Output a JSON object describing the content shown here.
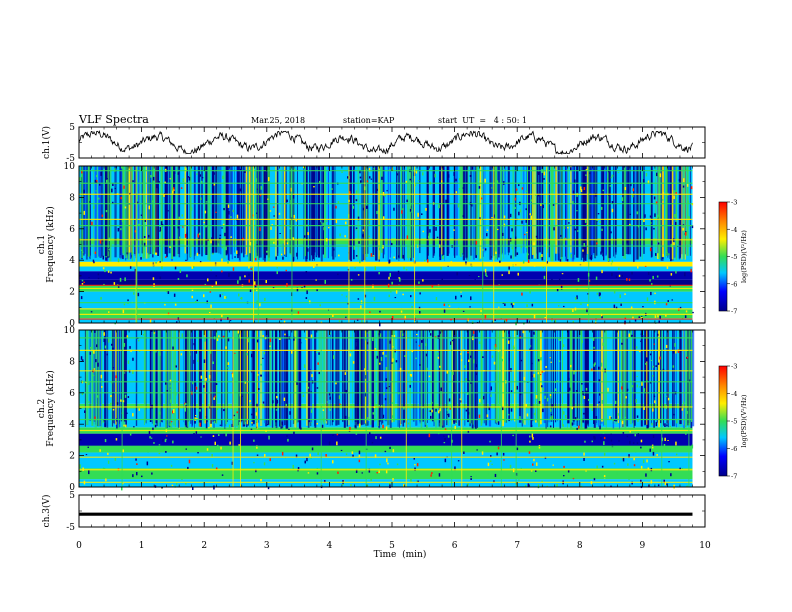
{
  "header": {
    "title": "VLF Spectra",
    "date": "Mar.25, 2018",
    "station": "station=KAP",
    "start": "start  UT  =   4 : 50: 1"
  },
  "chart_data": [
    {
      "type": "line",
      "name": "ch1-waveform",
      "ylabel": "ch.1(V)",
      "ylim": [
        -5,
        5
      ],
      "yticks": [
        "5",
        "-5"
      ],
      "xlim": [
        0,
        10
      ],
      "data_end_min": 9.8,
      "description_values": "noisy waveform oscillating roughly between -2 and 2 V"
    },
    {
      "type": "heatmap",
      "name": "ch1-spectrogram",
      "ylabel": "ch.1\nFrequency (kHz)",
      "ylim": [
        0,
        10
      ],
      "yticks": [
        "0",
        "2",
        "4",
        "6",
        "8",
        "10"
      ],
      "xlim": [
        0,
        10
      ],
      "data_end_min": 9.8,
      "colorbar": {
        "label": "log(PSD)(V²/Hz)",
        "range": [
          -7,
          -3
        ],
        "ticks": [
          "-3",
          "-4",
          "-5",
          "-6",
          "-7"
        ]
      }
    },
    {
      "type": "heatmap",
      "name": "ch2-spectrogram",
      "ylabel": "ch.2\nFrequency (kHz)",
      "ylim": [
        0,
        10
      ],
      "yticks": [
        "0",
        "2",
        "4",
        "6",
        "8",
        "10"
      ],
      "xlim": [
        0,
        10
      ],
      "data_end_min": 9.8,
      "colorbar": {
        "label": "log(PSD)(V²/Hz)",
        "range": [
          -7,
          -3
        ],
        "ticks": [
          "-3",
          "-4",
          "-5",
          "-6",
          "-7"
        ]
      }
    },
    {
      "type": "line",
      "name": "ch3-waveform",
      "ylabel": "ch.3(V)",
      "ylim": [
        -5,
        5
      ],
      "yticks": [
        "5",
        "-5"
      ],
      "xlim": [
        0,
        10
      ],
      "data_end_min": 9.8,
      "constant_value": -1
    }
  ],
  "xaxis": {
    "label": "Time  (min)",
    "ticks": [
      "0",
      "1",
      "2",
      "3",
      "4",
      "5",
      "6",
      "7",
      "8",
      "9",
      "10"
    ]
  },
  "colors": {
    "low": "#00008b",
    "mid": "#00c8ff",
    "green": "#33dd55",
    "high": "#ffee00",
    "peak": "#ff2200"
  }
}
